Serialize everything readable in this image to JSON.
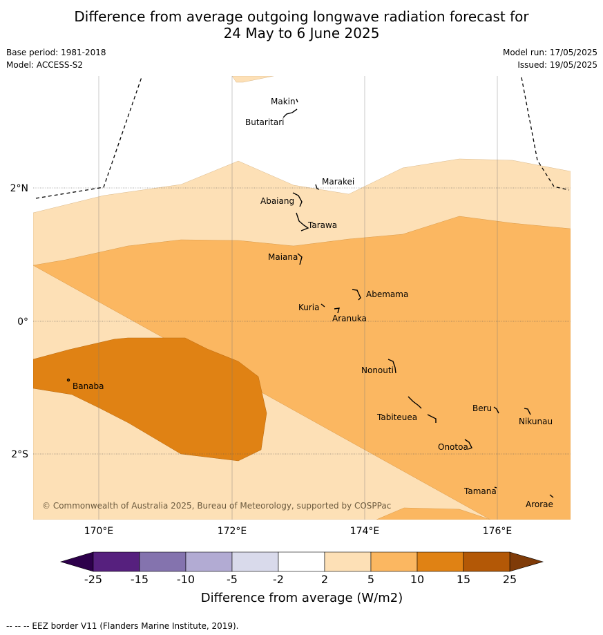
{
  "title_line1": "Difference from average outgoing longwave radiation forecast for",
  "title_line2": "24 May to 6 June 2025",
  "base_period": "Base period: 1981-2018",
  "model": "Model: ACCESS-S2",
  "model_run": "Model run: 17/05/2025",
  "issued": "Issued: 19/05/2025",
  "lon_labels": [
    "170°E",
    "172°E",
    "174°E",
    "176°E"
  ],
  "lat_labels": [
    "2°N",
    "0°",
    "2°S"
  ],
  "places": [
    "Makin",
    "Butaritari",
    "Marakei",
    "Abaiang",
    "Tarawa",
    "Maiana",
    "Abemama",
    "Kuria",
    "Aranuka",
    "Nonouti",
    "Banaba",
    "Beru",
    "Tabiteuea",
    "Nikunau",
    "Onotoa",
    "Tamana",
    "Arorae"
  ],
  "copyright": "© Commonwealth of Australia 2025, Bureau of Meteorology, supported by COSPPac",
  "colorbar": {
    "ticks": [
      "-25",
      "-15",
      "-10",
      "-5",
      "-2",
      "2",
      "5",
      "10",
      "15",
      "25"
    ],
    "colors": [
      "#56207e",
      "#8473ae",
      "#b2abd3",
      "#d9daeb",
      "#ffffff",
      "#fde0b6",
      "#fbb761",
      "#e08214",
      "#b35806"
    ],
    "low_extend_color": "#2d004b",
    "high_extend_color": "#7f3b08",
    "label": "Difference from average (W/m2)"
  },
  "footer": "--  --  -- EEZ border V11 (Flanders Marine Institute, 2019)."
}
